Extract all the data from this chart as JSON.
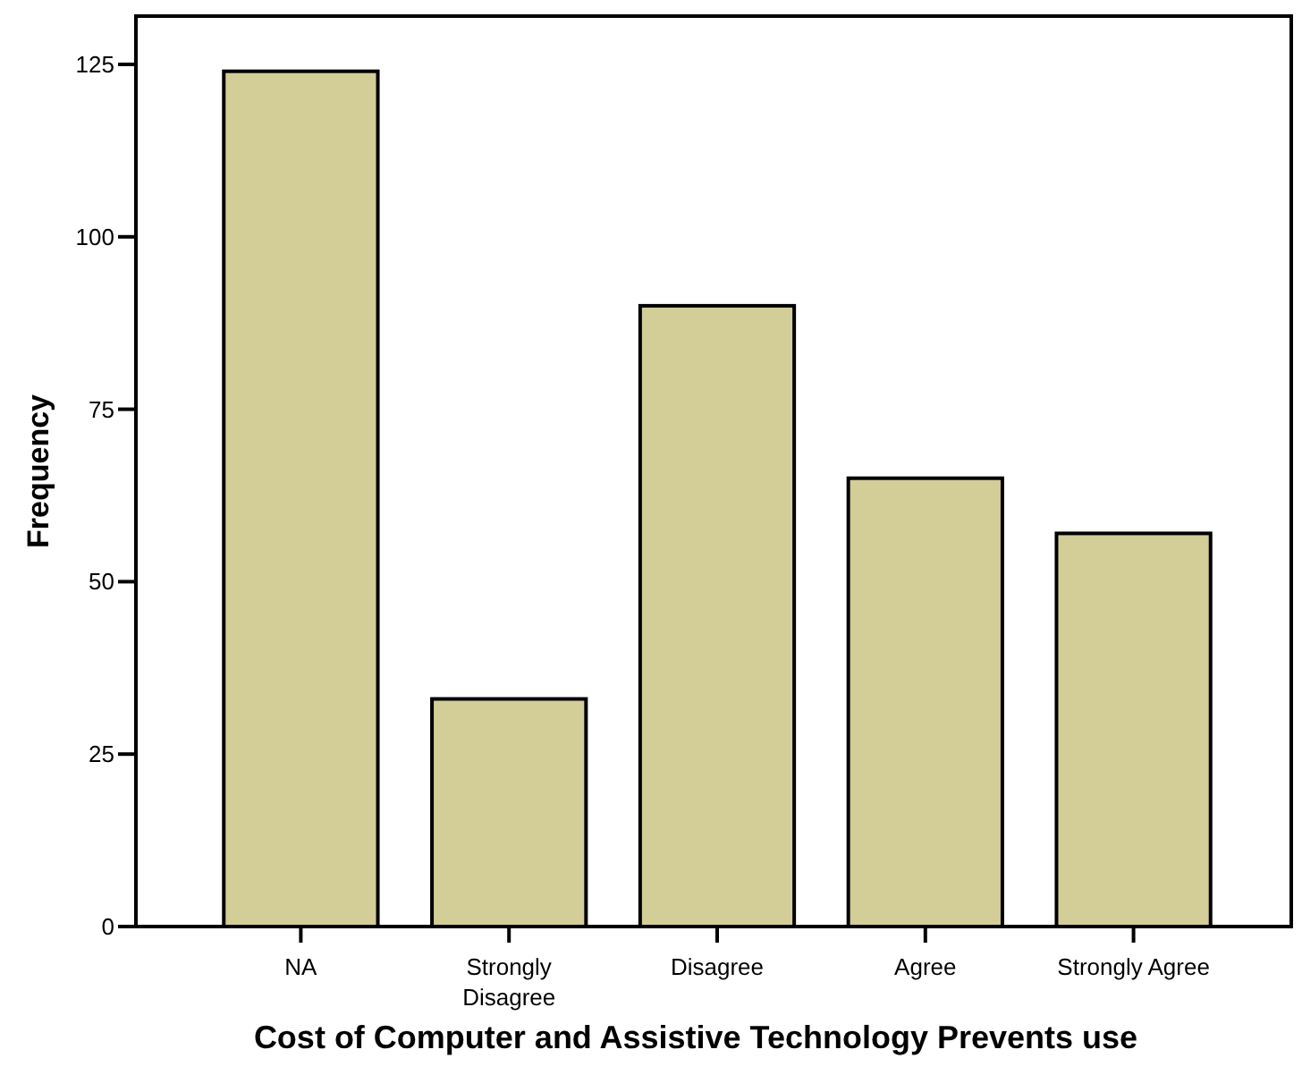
{
  "chart_data": {
    "type": "bar",
    "xlabel": "Cost of Computer and Assistive Technology Prevents use",
    "ylabel": "Frequency",
    "categories": [
      "NA",
      "Strongly Disagree",
      "Disagree",
      "Agree",
      "Strongly Agree"
    ],
    "values": [
      124,
      33,
      90,
      65,
      57
    ],
    "color": "#d3cd98",
    "ylim": [
      0,
      132
    ],
    "yticks": [
      0,
      25,
      50,
      75,
      100,
      125
    ],
    "grid": false
  }
}
